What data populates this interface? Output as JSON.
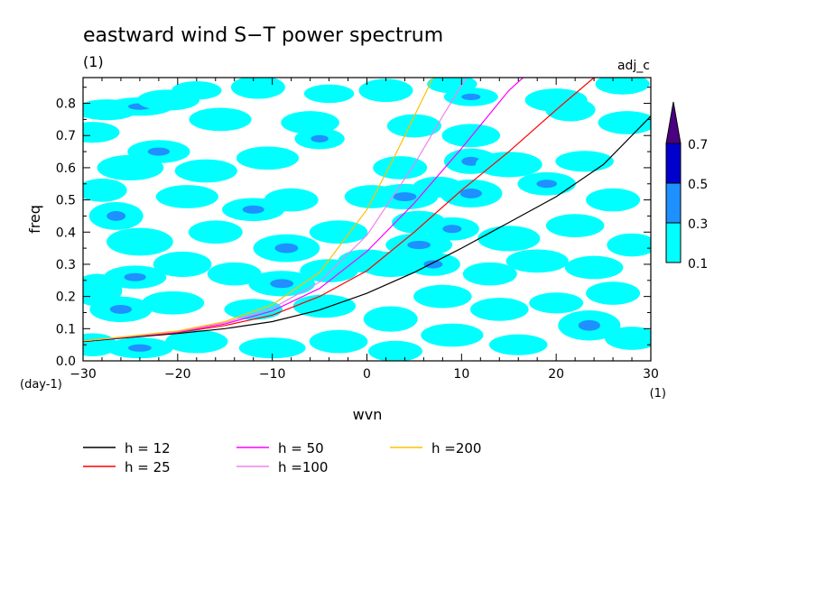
{
  "chart_data": {
    "type": "heatmap",
    "title": "eastward wind S−T power spectrum",
    "subtitle": "(1)",
    "corner_label": "adj_c",
    "xlabel": "wvn",
    "ylabel": "freq",
    "x_unit": "(1)",
    "y_unit": "(day-1)",
    "xlim": [
      -30,
      30
    ],
    "ylim": [
      0.0,
      0.88
    ],
    "x_ticks": [
      -30,
      -20,
      -10,
      0,
      10,
      20,
      30
    ],
    "x_tick_labels": [
      "−30",
      "−20",
      "−10",
      "0",
      "10",
      "20",
      "30"
    ],
    "y_ticks": [
      0.0,
      0.1,
      0.2,
      0.3,
      0.4,
      0.5,
      0.6,
      0.7,
      0.8
    ],
    "y_tick_labels": [
      "0.0",
      "0.1",
      "0.2",
      "0.3",
      "0.4",
      "0.5",
      "0.6",
      "0.7",
      "0.8"
    ],
    "colorbar": {
      "levels": [
        0.1,
        0.3,
        0.5,
        0.7
      ],
      "level_labels": [
        "0.1",
        "0.3",
        "0.5",
        "0.7"
      ],
      "colors": [
        "#00ffff",
        "#1e90ff",
        "#0000cd",
        "#4b0082"
      ]
    },
    "contour_patches": [
      {
        "x": -27.5,
        "y": 0.78,
        "rx": 1.5,
        "ry": 0.018,
        "level": 1
      },
      {
        "x": -24.0,
        "y": 0.79,
        "rx": 1.6,
        "ry": 0.016,
        "level": 2
      },
      {
        "x": -21.0,
        "y": 0.81,
        "rx": 1.5,
        "ry": 0.018,
        "level": 1
      },
      {
        "x": -18.0,
        "y": 0.84,
        "rx": 1.2,
        "ry": 0.016,
        "level": 1
      },
      {
        "x": -11.5,
        "y": 0.85,
        "rx": 1.3,
        "ry": 0.02,
        "level": 1
      },
      {
        "x": -4.0,
        "y": 0.83,
        "rx": 1.2,
        "ry": 0.016,
        "level": 1
      },
      {
        "x": 2.0,
        "y": 0.84,
        "rx": 1.3,
        "ry": 0.02,
        "level": 1
      },
      {
        "x": 9.0,
        "y": 0.86,
        "rx": 1.2,
        "ry": 0.016,
        "level": 1
      },
      {
        "x": 11.0,
        "y": 0.82,
        "rx": 1.3,
        "ry": 0.016,
        "level": 2
      },
      {
        "x": 20.0,
        "y": 0.81,
        "rx": 1.5,
        "ry": 0.02,
        "level": 1
      },
      {
        "x": 27.0,
        "y": 0.86,
        "rx": 1.3,
        "ry": 0.018,
        "level": 1
      },
      {
        "x": -29.0,
        "y": 0.71,
        "rx": 1.3,
        "ry": 0.018,
        "level": 1
      },
      {
        "x": -22.0,
        "y": 0.65,
        "rx": 1.5,
        "ry": 0.02,
        "level": 2
      },
      {
        "x": -15.5,
        "y": 0.75,
        "rx": 1.5,
        "ry": 0.02,
        "level": 1
      },
      {
        "x": -6.0,
        "y": 0.74,
        "rx": 1.4,
        "ry": 0.02,
        "level": 1
      },
      {
        "x": 5.0,
        "y": 0.73,
        "rx": 1.3,
        "ry": 0.02,
        "level": 1
      },
      {
        "x": 11.0,
        "y": 0.7,
        "rx": 1.4,
        "ry": 0.02,
        "level": 1
      },
      {
        "x": 21.5,
        "y": 0.78,
        "rx": 1.2,
        "ry": 0.02,
        "level": 1
      },
      {
        "x": 27.5,
        "y": 0.74,
        "rx": 1.4,
        "ry": 0.02,
        "level": 1
      },
      {
        "x": -25.0,
        "y": 0.6,
        "rx": 1.6,
        "ry": 0.022,
        "level": 1
      },
      {
        "x": -17.0,
        "y": 0.59,
        "rx": 1.5,
        "ry": 0.02,
        "level": 1
      },
      {
        "x": -10.5,
        "y": 0.63,
        "rx": 1.5,
        "ry": 0.02,
        "level": 1
      },
      {
        "x": -5.0,
        "y": 0.69,
        "rx": 1.2,
        "ry": 0.018,
        "level": 2
      },
      {
        "x": 3.5,
        "y": 0.6,
        "rx": 1.3,
        "ry": 0.02,
        "level": 1
      },
      {
        "x": 11.0,
        "y": 0.62,
        "rx": 1.3,
        "ry": 0.022,
        "level": 2
      },
      {
        "x": 15.0,
        "y": 0.61,
        "rx": 1.6,
        "ry": 0.022,
        "level": 1
      },
      {
        "x": 23.0,
        "y": 0.62,
        "rx": 1.4,
        "ry": 0.018,
        "level": 1
      },
      {
        "x": -28.0,
        "y": 0.53,
        "rx": 1.2,
        "ry": 0.02,
        "level": 1
      },
      {
        "x": -26.5,
        "y": 0.45,
        "rx": 1.3,
        "ry": 0.024,
        "level": 2
      },
      {
        "x": -19.0,
        "y": 0.51,
        "rx": 1.5,
        "ry": 0.02,
        "level": 1
      },
      {
        "x": -12.0,
        "y": 0.47,
        "rx": 1.5,
        "ry": 0.02,
        "level": 2
      },
      {
        "x": -8.0,
        "y": 0.5,
        "rx": 1.3,
        "ry": 0.02,
        "level": 1
      },
      {
        "x": 0.5,
        "y": 0.51,
        "rx": 1.3,
        "ry": 0.02,
        "level": 1
      },
      {
        "x": 4.0,
        "y": 0.51,
        "rx": 1.6,
        "ry": 0.022,
        "level": 2
      },
      {
        "x": 7.5,
        "y": 0.54,
        "rx": 1.2,
        "ry": 0.018,
        "level": 1
      },
      {
        "x": 11.0,
        "y": 0.52,
        "rx": 1.5,
        "ry": 0.024,
        "level": 2
      },
      {
        "x": 19.0,
        "y": 0.55,
        "rx": 1.4,
        "ry": 0.02,
        "level": 2
      },
      {
        "x": 26.0,
        "y": 0.5,
        "rx": 1.3,
        "ry": 0.02,
        "level": 1
      },
      {
        "x": -24.0,
        "y": 0.37,
        "rx": 1.6,
        "ry": 0.024,
        "level": 1
      },
      {
        "x": -16.0,
        "y": 0.4,
        "rx": 1.3,
        "ry": 0.02,
        "level": 1
      },
      {
        "x": -8.5,
        "y": 0.35,
        "rx": 1.6,
        "ry": 0.024,
        "level": 2
      },
      {
        "x": -3.0,
        "y": 0.4,
        "rx": 1.4,
        "ry": 0.02,
        "level": 1
      },
      {
        "x": 5.5,
        "y": 0.43,
        "rx": 1.3,
        "ry": 0.02,
        "level": 1
      },
      {
        "x": 9.0,
        "y": 0.41,
        "rx": 1.3,
        "ry": 0.02,
        "level": 2
      },
      {
        "x": 15.0,
        "y": 0.38,
        "rx": 1.5,
        "ry": 0.022,
        "level": 1
      },
      {
        "x": 22.0,
        "y": 0.42,
        "rx": 1.4,
        "ry": 0.02,
        "level": 1
      },
      {
        "x": 28.0,
        "y": 0.36,
        "rx": 1.2,
        "ry": 0.02,
        "level": 1
      },
      {
        "x": -28.5,
        "y": 0.22,
        "rx": 1.2,
        "ry": 0.028,
        "level": 1
      },
      {
        "x": -24.5,
        "y": 0.26,
        "rx": 1.5,
        "ry": 0.02,
        "level": 2
      },
      {
        "x": -19.5,
        "y": 0.3,
        "rx": 1.4,
        "ry": 0.022,
        "level": 1
      },
      {
        "x": -14.0,
        "y": 0.27,
        "rx": 1.3,
        "ry": 0.02,
        "level": 1
      },
      {
        "x": -9.0,
        "y": 0.24,
        "rx": 1.6,
        "ry": 0.022,
        "level": 2
      },
      {
        "x": -4.0,
        "y": 0.28,
        "rx": 1.4,
        "ry": 0.02,
        "level": 1
      },
      {
        "x": 0.0,
        "y": 0.31,
        "rx": 1.4,
        "ry": 0.02,
        "level": 1
      },
      {
        "x": 2.5,
        "y": 0.3,
        "rx": 1.5,
        "ry": 0.022,
        "level": 1
      },
      {
        "x": 5.5,
        "y": 0.36,
        "rx": 1.6,
        "ry": 0.02,
        "level": 2
      },
      {
        "x": 7.0,
        "y": 0.3,
        "rx": 1.3,
        "ry": 0.02,
        "level": 2
      },
      {
        "x": 13.0,
        "y": 0.27,
        "rx": 1.3,
        "ry": 0.02,
        "level": 1
      },
      {
        "x": 18.0,
        "y": 0.31,
        "rx": 1.5,
        "ry": 0.02,
        "level": 1
      },
      {
        "x": 24.0,
        "y": 0.29,
        "rx": 1.4,
        "ry": 0.02,
        "level": 1
      },
      {
        "x": -26.0,
        "y": 0.16,
        "rx": 1.5,
        "ry": 0.022,
        "level": 2
      },
      {
        "x": -20.5,
        "y": 0.18,
        "rx": 1.5,
        "ry": 0.02,
        "level": 1
      },
      {
        "x": -12.0,
        "y": 0.16,
        "rx": 1.4,
        "ry": 0.018,
        "level": 1
      },
      {
        "x": -4.5,
        "y": 0.17,
        "rx": 1.5,
        "ry": 0.02,
        "level": 1
      },
      {
        "x": 2.5,
        "y": 0.13,
        "rx": 1.3,
        "ry": 0.022,
        "level": 1
      },
      {
        "x": 8.0,
        "y": 0.2,
        "rx": 1.4,
        "ry": 0.02,
        "level": 1
      },
      {
        "x": 14.0,
        "y": 0.16,
        "rx": 1.4,
        "ry": 0.02,
        "level": 1
      },
      {
        "x": 20.0,
        "y": 0.18,
        "rx": 1.3,
        "ry": 0.018,
        "level": 1
      },
      {
        "x": 26.0,
        "y": 0.21,
        "rx": 1.3,
        "ry": 0.02,
        "level": 1
      },
      {
        "x": -29.0,
        "y": 0.05,
        "rx": 1.2,
        "ry": 0.02,
        "level": 1
      },
      {
        "x": -24.0,
        "y": 0.04,
        "rx": 1.6,
        "ry": 0.018,
        "level": 2
      },
      {
        "x": -18.0,
        "y": 0.06,
        "rx": 1.5,
        "ry": 0.02,
        "level": 1
      },
      {
        "x": -10.0,
        "y": 0.04,
        "rx": 1.6,
        "ry": 0.018,
        "level": 1
      },
      {
        "x": -3.0,
        "y": 0.06,
        "rx": 1.4,
        "ry": 0.02,
        "level": 1
      },
      {
        "x": 3.0,
        "y": 0.03,
        "rx": 1.3,
        "ry": 0.018,
        "level": 1
      },
      {
        "x": 9.0,
        "y": 0.08,
        "rx": 1.5,
        "ry": 0.02,
        "level": 1
      },
      {
        "x": 16.0,
        "y": 0.05,
        "rx": 1.4,
        "ry": 0.018,
        "level": 1
      },
      {
        "x": 23.5,
        "y": 0.11,
        "rx": 1.5,
        "ry": 0.026,
        "level": 2
      },
      {
        "x": 28.0,
        "y": 0.07,
        "rx": 1.3,
        "ry": 0.02,
        "level": 1
      }
    ],
    "series": [
      {
        "name": "h = 12",
        "color": "#000000",
        "x": [
          -30,
          -25,
          -20,
          -15,
          -10,
          -5,
          0,
          5,
          10,
          15,
          20,
          25,
          30
        ],
        "values": [
          0.06,
          0.073,
          0.085,
          0.1,
          0.122,
          0.158,
          0.21,
          0.275,
          0.35,
          0.43,
          0.51,
          0.61,
          0.76
        ]
      },
      {
        "name": "h = 25",
        "color": "#ff0000",
        "x": [
          -30,
          -25,
          -20,
          -15,
          -10,
          -5,
          0,
          5,
          10,
          15,
          20,
          24
        ],
        "values": [
          0.062,
          0.075,
          0.088,
          0.11,
          0.142,
          0.2,
          0.28,
          0.4,
          0.53,
          0.65,
          0.78,
          0.88
        ]
      },
      {
        "name": "h = 50",
        "color": "#ff00ff",
        "x": [
          -30,
          -25,
          -20,
          -15,
          -10,
          -5,
          0,
          5,
          10,
          15,
          16.5
        ],
        "values": [
          0.062,
          0.075,
          0.09,
          0.115,
          0.155,
          0.225,
          0.34,
          0.49,
          0.66,
          0.84,
          0.88
        ]
      },
      {
        "name": "h =100",
        "color": "#ee82ee",
        "x": [
          -30,
          -25,
          -20,
          -15,
          -10,
          -5,
          0,
          5,
          8,
          10.5
        ],
        "values": [
          0.062,
          0.076,
          0.091,
          0.118,
          0.163,
          0.245,
          0.39,
          0.61,
          0.76,
          0.88
        ]
      },
      {
        "name": "h =200",
        "color": "#ffc000",
        "x": [
          -30,
          -25,
          -20,
          -15,
          -10,
          -5,
          0,
          3,
          5,
          7.0
        ],
        "values": [
          0.062,
          0.077,
          0.093,
          0.122,
          0.175,
          0.275,
          0.47,
          0.64,
          0.76,
          0.88
        ]
      }
    ]
  }
}
